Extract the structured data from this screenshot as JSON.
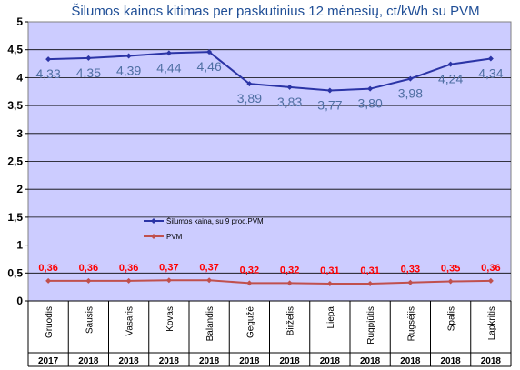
{
  "chart_data": {
    "type": "line",
    "title": "Šilumos kainos kitimas per paskutinius 12 mėnesių, ct/kWh su PVM",
    "categories": [
      "Gruodis",
      "Sausis",
      "Vasaris",
      "Kovas",
      "Balandis",
      "Gegužė",
      "Birželis",
      "Liepa",
      "Rugpjūtis",
      "Rugsėjis",
      "Spalis",
      "Lapkritis"
    ],
    "years": [
      "2017",
      "2018",
      "2018",
      "2018",
      "2018",
      "2018",
      "2018",
      "2018",
      "2018",
      "2018",
      "2018",
      "2018"
    ],
    "series": [
      {
        "name": "Šilumos kaina, su 9 proc.PVM",
        "color": "#2b34a6",
        "values": [
          4.33,
          4.35,
          4.39,
          4.44,
          4.46,
          3.89,
          3.83,
          3.77,
          3.8,
          3.98,
          4.24,
          4.34
        ],
        "labels": [
          "4,33",
          "4,35",
          "4,39",
          "4,44",
          "4,46",
          "3,89",
          "3,83",
          "3,77",
          "3,80",
          "3,98",
          "4,24",
          "4,34"
        ]
      },
      {
        "name": "PVM",
        "color": "#c0504d",
        "values": [
          0.36,
          0.36,
          0.36,
          0.37,
          0.37,
          0.32,
          0.32,
          0.31,
          0.31,
          0.33,
          0.35,
          0.36
        ],
        "labels": [
          "0,36",
          "0,36",
          "0,36",
          "0,37",
          "0,37",
          "0,32",
          "0,32",
          "0,31",
          "0,31",
          "0,33",
          "0,35",
          "0,36"
        ]
      }
    ],
    "yticks": [
      "0",
      "0,5",
      "1",
      "1,5",
      "2",
      "2,5",
      "3",
      "3,5",
      "4",
      "4,5",
      "5"
    ],
    "ylim": [
      0,
      5
    ],
    "xlabel": "",
    "ylabel": "",
    "grid": true,
    "legend_position": "center-left",
    "plot_background": "#ccccff"
  }
}
